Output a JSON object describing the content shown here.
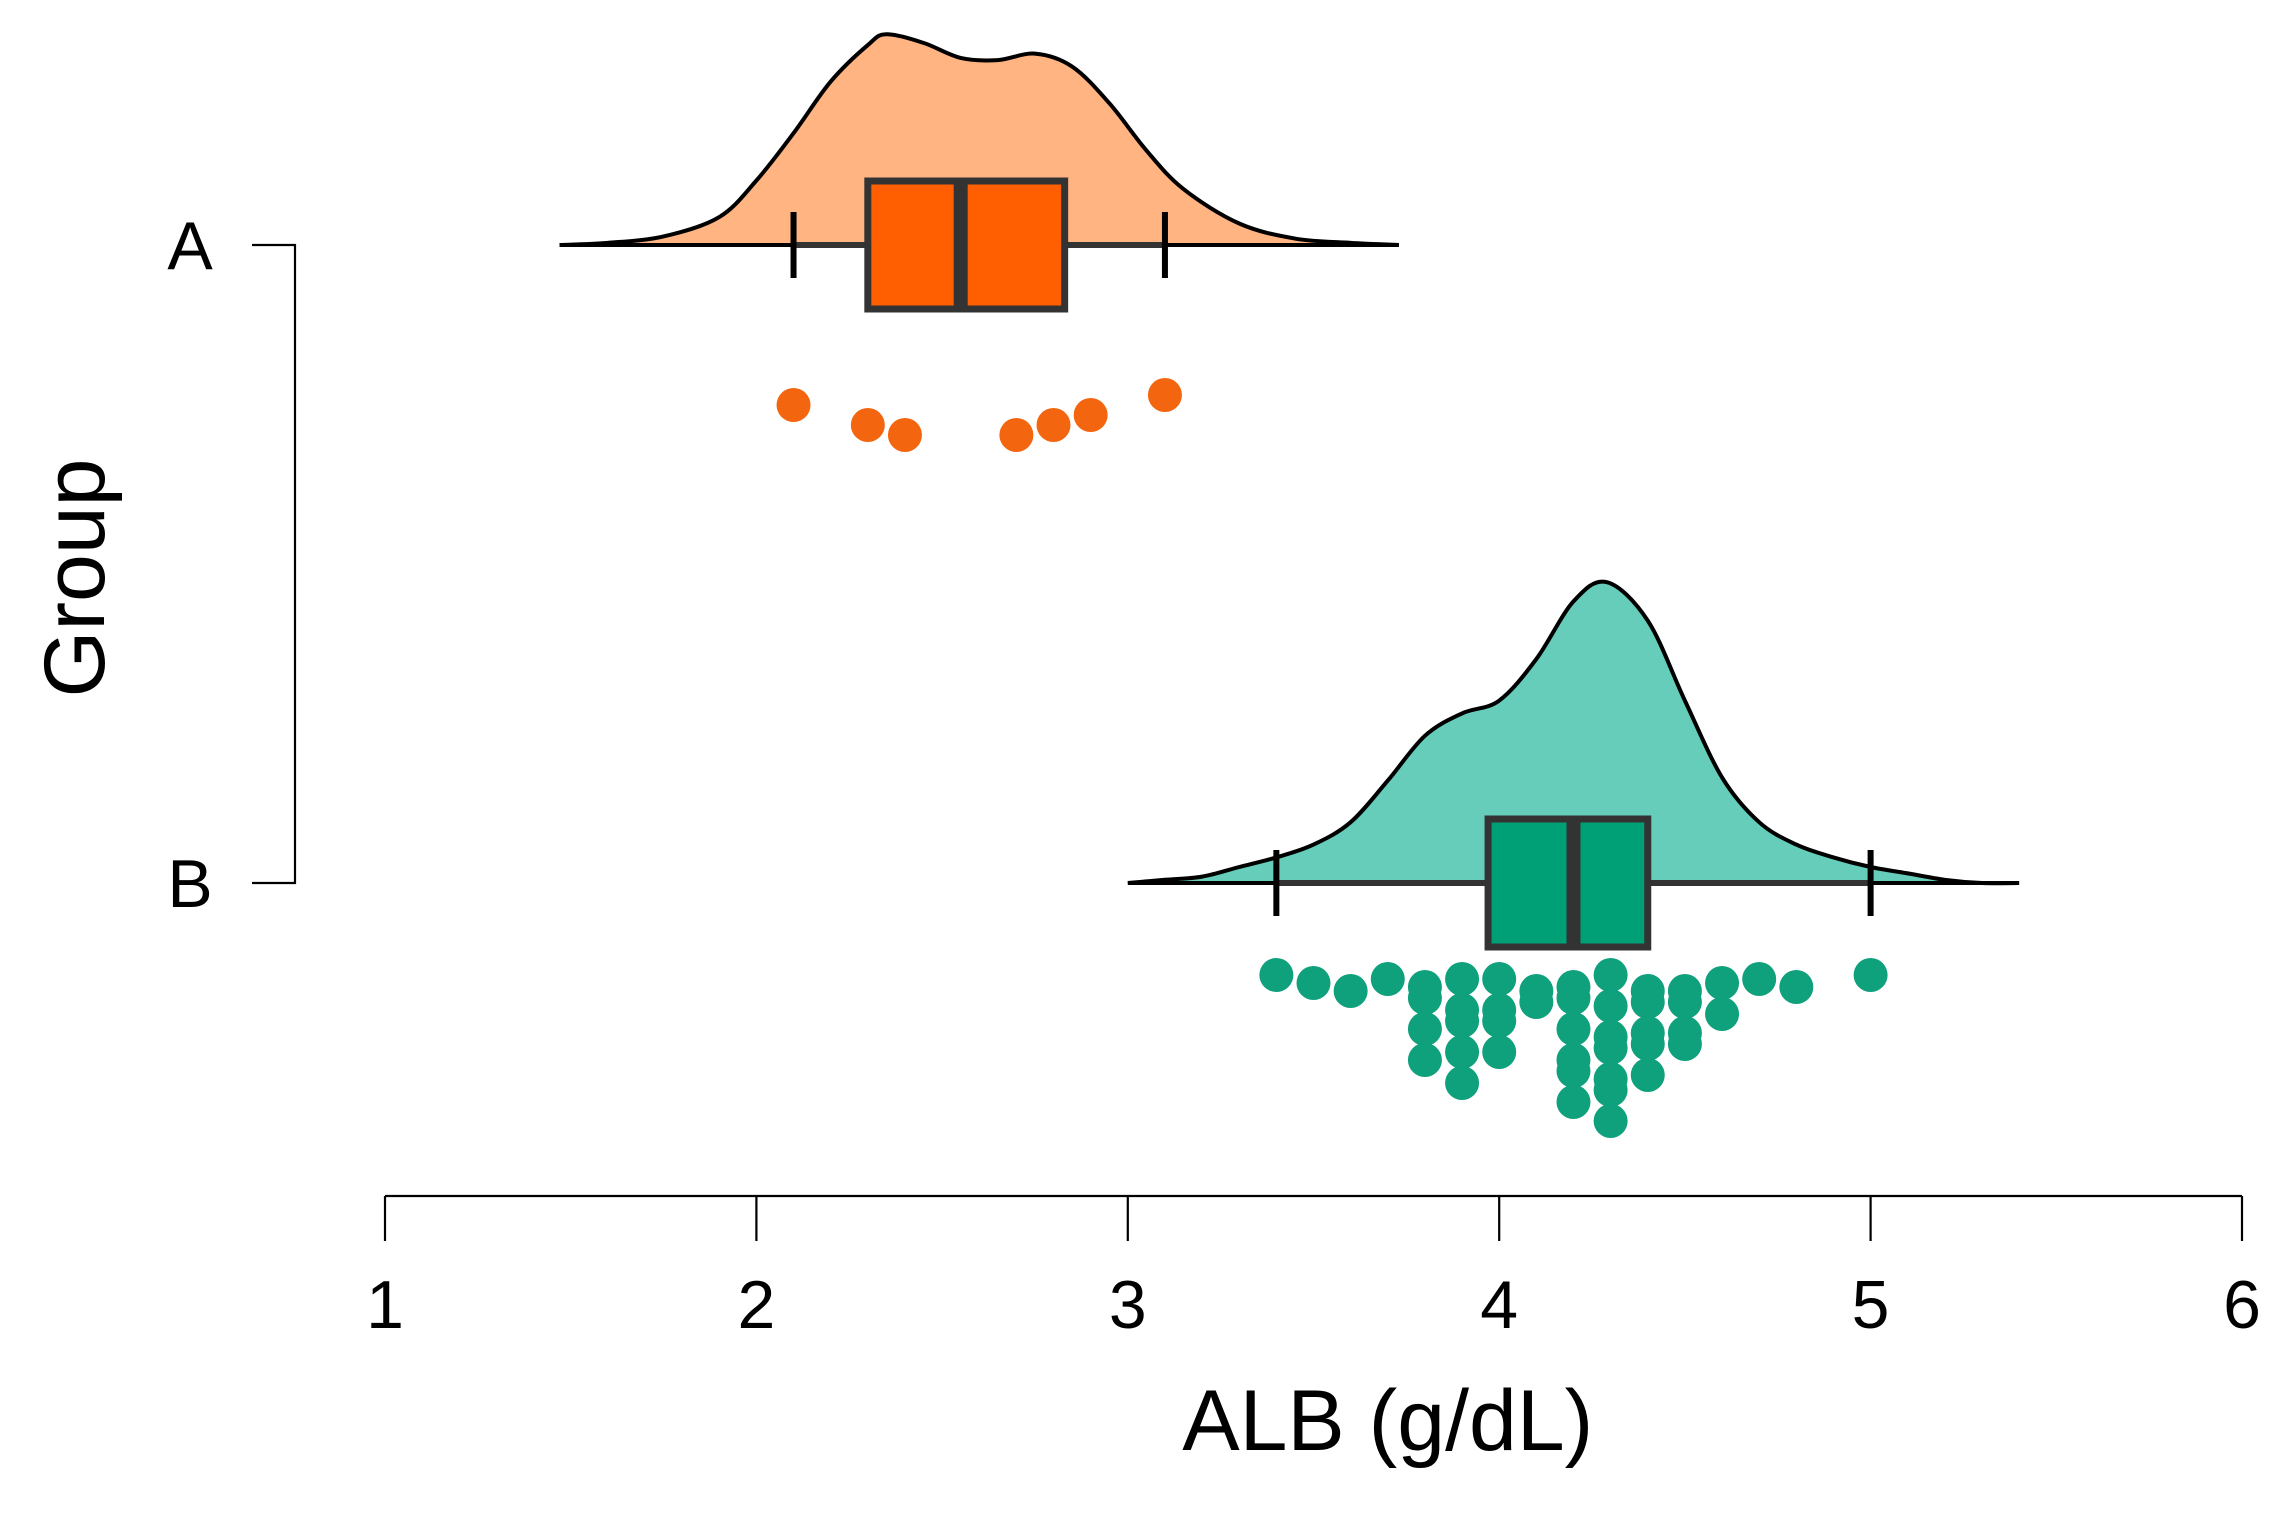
{
  "chart_data": {
    "type": "raincloud",
    "orientation": "horizontal",
    "xlabel": "ALB (g/dL)",
    "ylabel": "Group",
    "xlim": [
      1,
      6
    ],
    "x_ticks": [
      "1",
      "2",
      "3",
      "4",
      "5",
      "6"
    ],
    "grid": false,
    "legend": "none",
    "groups": [
      {
        "label": "A",
        "fill_color": "#FFB482",
        "box_color": "#FF5F00",
        "point_color": "#F4650F",
        "box": {
          "whisker_low": 2.1,
          "q1": 2.3,
          "median": 2.55,
          "q3": 2.83,
          "whisker_high": 3.1
        },
        "density_range": [
          1.47,
          3.73
        ],
        "density_curve": [
          [
            1.47,
            0.0
          ],
          [
            1.6,
            0.01
          ],
          [
            1.75,
            0.04
          ],
          [
            1.9,
            0.13
          ],
          [
            2.0,
            0.3
          ],
          [
            2.1,
            0.52
          ],
          [
            2.2,
            0.76
          ],
          [
            2.3,
            0.93
          ],
          [
            2.35,
            0.98
          ],
          [
            2.45,
            0.94
          ],
          [
            2.55,
            0.87
          ],
          [
            2.65,
            0.86
          ],
          [
            2.75,
            0.89
          ],
          [
            2.85,
            0.83
          ],
          [
            2.95,
            0.66
          ],
          [
            3.05,
            0.44
          ],
          [
            3.15,
            0.26
          ],
          [
            3.3,
            0.1
          ],
          [
            3.45,
            0.03
          ],
          [
            3.6,
            0.01
          ],
          [
            3.73,
            0.0
          ]
        ],
        "points": [
          2.1,
          2.3,
          2.4,
          2.7,
          2.8,
          2.9,
          3.1
        ]
      },
      {
        "label": "B",
        "fill_color": "#66CDBA",
        "box_color": "#00A077",
        "point_color": "#0FA07C",
        "box": {
          "whisker_low": 3.4,
          "q1": 3.97,
          "median": 4.2,
          "q3": 4.4,
          "whisker_high": 5.0
        },
        "density_range": [
          3.0,
          5.4
        ],
        "density_curve": [
          [
            3.0,
            0.0
          ],
          [
            3.1,
            0.01
          ],
          [
            3.2,
            0.02
          ],
          [
            3.3,
            0.05
          ],
          [
            3.4,
            0.08
          ],
          [
            3.5,
            0.12
          ],
          [
            3.6,
            0.19
          ],
          [
            3.7,
            0.32
          ],
          [
            3.8,
            0.46
          ],
          [
            3.9,
            0.53
          ],
          [
            4.0,
            0.57
          ],
          [
            4.1,
            0.7
          ],
          [
            4.2,
            0.88
          ],
          [
            4.29,
            0.94
          ],
          [
            4.4,
            0.82
          ],
          [
            4.5,
            0.57
          ],
          [
            4.6,
            0.33
          ],
          [
            4.7,
            0.19
          ],
          [
            4.8,
            0.12
          ],
          [
            4.9,
            0.08
          ],
          [
            5.0,
            0.05
          ],
          [
            5.1,
            0.03
          ],
          [
            5.2,
            0.01
          ],
          [
            5.3,
            0.0
          ],
          [
            5.4,
            0.0
          ]
        ],
        "points": [
          3.4,
          3.5,
          3.6,
          3.7,
          3.8,
          3.8,
          3.8,
          3.8,
          3.9,
          3.9,
          3.9,
          3.9,
          3.9,
          4.0,
          4.0,
          4.0,
          4.0,
          4.1,
          4.1,
          4.2,
          4.2,
          4.2,
          4.2,
          4.2,
          4.2,
          4.3,
          4.3,
          4.3,
          4.3,
          4.3,
          4.3,
          4.3,
          4.4,
          4.4,
          4.4,
          4.4,
          4.4,
          4.5,
          4.5,
          4.5,
          4.5,
          4.6,
          4.6,
          4.7,
          4.8,
          5.0
        ]
      }
    ]
  }
}
